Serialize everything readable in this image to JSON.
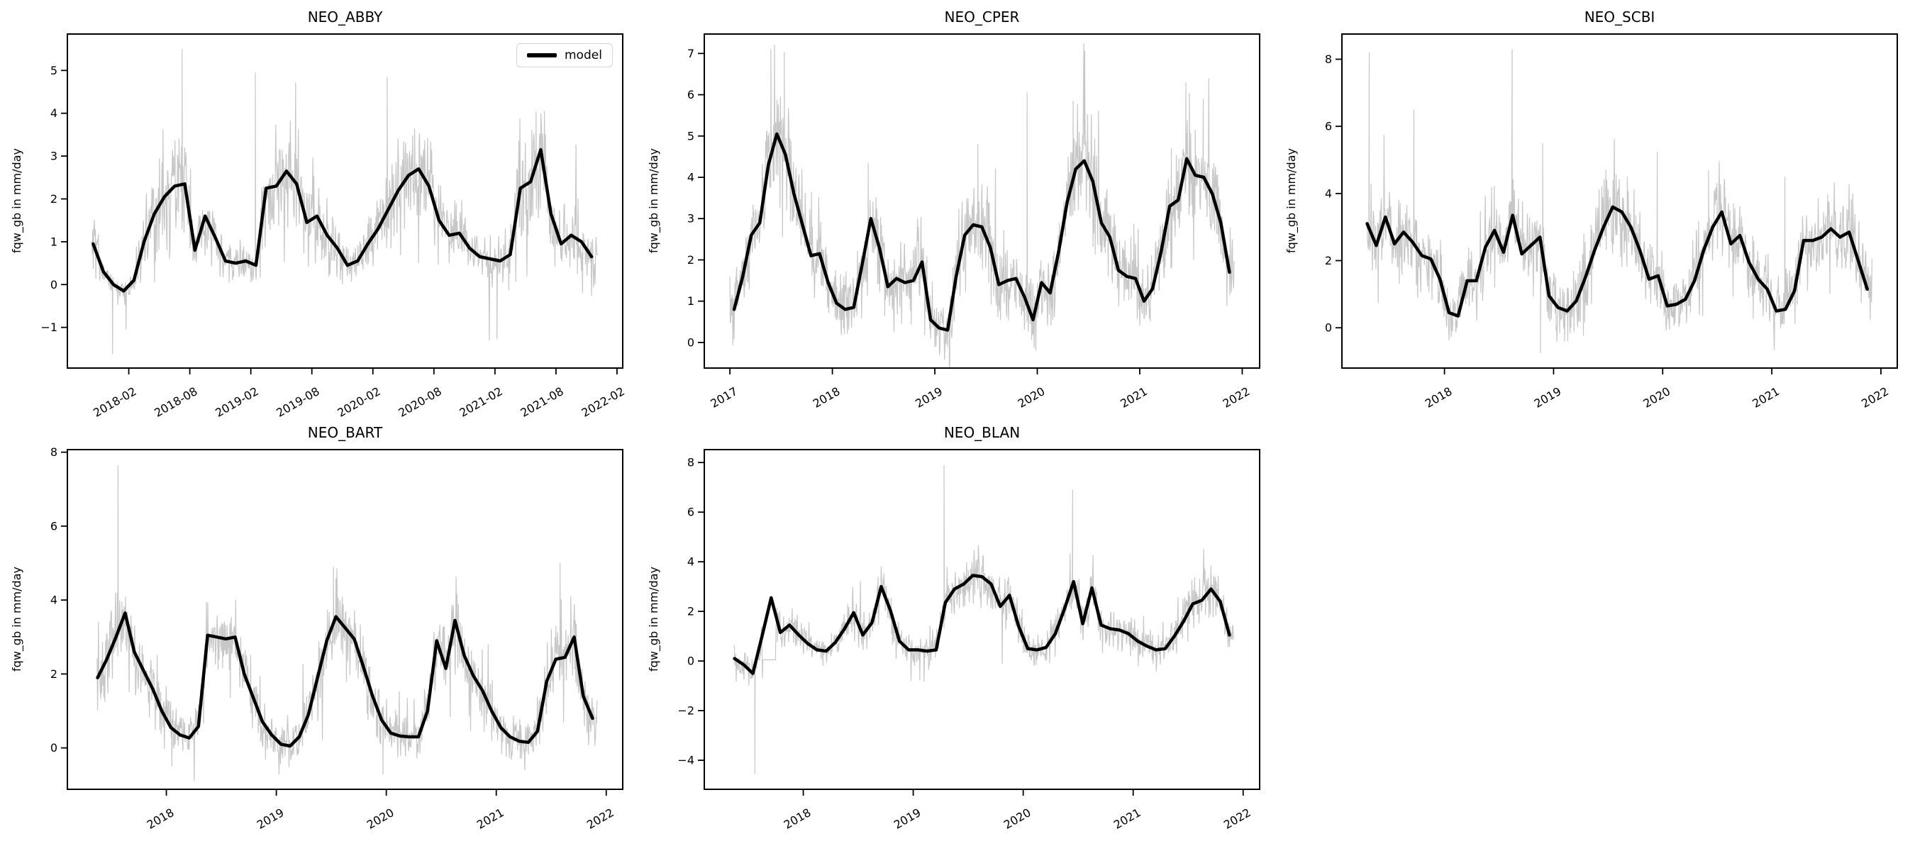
{
  "figure": {
    "background_color": "#ffffff",
    "model_color": "#000000",
    "observation_color": "#c7c7c7"
  },
  "legend": {
    "label": "model"
  },
  "chart_data": [
    {
      "id": "neo-abby",
      "type": "line",
      "title": "NEO_ABBY",
      "ylabel": "fqw_gb in mm/day",
      "xlim": [
        2017.58,
        2022.13
      ],
      "ylim": [
        -1.95,
        5.85
      ],
      "yticks": [
        -1,
        0,
        1,
        2,
        3,
        4,
        5
      ],
      "xticks": [
        {
          "v": 2018.083,
          "label": "2018-02"
        },
        {
          "v": 2018.583,
          "label": "2018-08"
        },
        {
          "v": 2019.083,
          "label": "2019-02"
        },
        {
          "v": 2019.583,
          "label": "2019-08"
        },
        {
          "v": 2020.083,
          "label": "2020-02"
        },
        {
          "v": 2020.583,
          "label": "2020-08"
        },
        {
          "v": 2021.083,
          "label": "2021-02"
        },
        {
          "v": 2021.583,
          "label": "2021-08"
        },
        {
          "v": 2022.083,
          "label": "2022-02"
        }
      ],
      "model": {
        "start_year": 2017,
        "start_month": 10,
        "monthly_values": [
          0.95,
          0.3,
          0.0,
          -0.15,
          0.1,
          1.0,
          1.65,
          2.05,
          2.3,
          2.35,
          0.8,
          1.6,
          1.1,
          0.55,
          0.5,
          0.55,
          0.45,
          2.25,
          2.3,
          2.65,
          2.35,
          1.45,
          1.6,
          1.15,
          0.85,
          0.45,
          0.55,
          0.95,
          1.3,
          1.75,
          2.2,
          2.55,
          2.7,
          2.3,
          1.5,
          1.15,
          1.2,
          0.85,
          0.65,
          0.6,
          0.55,
          0.7,
          2.25,
          2.4,
          3.15,
          1.65,
          0.95,
          1.15,
          1.0,
          0.65
        ]
      },
      "observations": {
        "start": 2017.78,
        "end": 2021.92,
        "step_days": 1.5,
        "seed": 101,
        "sd_base": 0.15,
        "sd_scale": 0.2,
        "spikes": [
          [
            2018.52,
            5.5
          ],
          [
            2019.12,
            4.95
          ],
          [
            2019.45,
            4.72
          ],
          [
            2020.2,
            4.85
          ],
          [
            2021.42,
            4.05
          ],
          [
            2017.95,
            -1.62
          ],
          [
            2018.06,
            -1.05
          ],
          [
            2021.1,
            -1.28
          ]
        ],
        "flat_segments": []
      },
      "show_legend": true
    },
    {
      "id": "neo-cper",
      "type": "line",
      "title": "NEO_CPER",
      "ylabel": "fqw_gb in mm/day",
      "xlim": [
        2016.75,
        2022.17
      ],
      "ylim": [
        -0.62,
        7.47
      ],
      "yticks": [
        0,
        1,
        2,
        3,
        4,
        5,
        6,
        7
      ],
      "xticks": [
        {
          "v": 2017,
          "label": "2017"
        },
        {
          "v": 2018,
          "label": "2018"
        },
        {
          "v": 2019,
          "label": "2019"
        },
        {
          "v": 2020,
          "label": "2020"
        },
        {
          "v": 2021,
          "label": "2021"
        },
        {
          "v": 2022,
          "label": "2022"
        }
      ],
      "model": {
        "start_year": 2017,
        "start_month": 1,
        "monthly_values": [
          0.8,
          1.6,
          2.6,
          2.9,
          4.3,
          5.05,
          4.55,
          3.6,
          2.85,
          2.1,
          2.15,
          1.45,
          0.95,
          0.8,
          0.85,
          1.9,
          3.0,
          2.3,
          1.35,
          1.55,
          1.45,
          1.5,
          1.95,
          0.55,
          0.35,
          0.3,
          1.6,
          2.6,
          2.85,
          2.8,
          2.3,
          1.4,
          1.5,
          1.55,
          1.1,
          0.55,
          1.45,
          1.2,
          2.2,
          3.4,
          4.2,
          4.4,
          3.9,
          2.9,
          2.55,
          1.75,
          1.6,
          1.55,
          1.0,
          1.3,
          2.2,
          3.3,
          3.45,
          4.45,
          4.05,
          4.0,
          3.6,
          2.9,
          1.7
        ]
      },
      "observations": {
        "start": 2017.0,
        "end": 2021.92,
        "step_days": 1.5,
        "seed": 202,
        "sd_base": 0.35,
        "sd_scale": 0.07,
        "spikes": [
          [
            2017.4,
            7.1
          ],
          [
            2017.53,
            7.03
          ],
          [
            2018.35,
            4.35
          ],
          [
            2019.42,
            4.8
          ],
          [
            2019.9,
            6.05
          ],
          [
            2020.35,
            5.85
          ],
          [
            2021.45,
            6.3
          ],
          [
            2021.62,
            5.9
          ]
        ],
        "flat_segments": []
      },
      "show_legend": false
    },
    {
      "id": "neo-scbi",
      "type": "line",
      "title": "NEO_SCBI",
      "ylabel": "fqw_gb in mm/day",
      "xlim": [
        2017.06,
        2022.15
      ],
      "ylim": [
        -1.2,
        8.75
      ],
      "yticks": [
        0,
        2,
        4,
        6,
        8
      ],
      "xticks": [
        {
          "v": 2018,
          "label": "2018"
        },
        {
          "v": 2019,
          "label": "2019"
        },
        {
          "v": 2020,
          "label": "2020"
        },
        {
          "v": 2021,
          "label": "2021"
        },
        {
          "v": 2022,
          "label": "2022"
        }
      ],
      "model": {
        "start_year": 2017,
        "start_month": 4,
        "monthly_values": [
          3.1,
          2.45,
          3.3,
          2.5,
          2.85,
          2.55,
          2.15,
          2.05,
          1.45,
          0.45,
          0.35,
          1.4,
          1.4,
          2.4,
          2.9,
          2.25,
          3.35,
          2.2,
          2.45,
          2.7,
          0.95,
          0.6,
          0.5,
          0.8,
          1.5,
          2.3,
          3.0,
          3.6,
          3.45,
          3.0,
          2.3,
          1.45,
          1.55,
          0.65,
          0.7,
          0.85,
          1.4,
          2.3,
          3.0,
          3.45,
          2.5,
          2.75,
          1.95,
          1.45,
          1.15,
          0.5,
          0.55,
          1.1,
          2.6,
          2.6,
          2.7,
          2.95,
          2.7,
          2.85,
          2.0,
          1.15
        ]
      },
      "observations": {
        "start": 2017.29,
        "end": 2021.92,
        "step_days": 1.5,
        "seed": 303,
        "sd_base": 0.42,
        "sd_scale": 0.07,
        "spikes": [
          [
            2017.31,
            8.2
          ],
          [
            2017.72,
            6.5
          ],
          [
            2018.62,
            8.3
          ],
          [
            2018.9,
            5.5
          ],
          [
            2019.95,
            5.25
          ],
          [
            2020.42,
            4.7
          ],
          [
            2021.12,
            4.5
          ],
          [
            2018.88,
            -0.75
          ]
        ],
        "flat_segments": []
      },
      "show_legend": false
    },
    {
      "id": "neo-bart",
      "type": "line",
      "title": "NEO_BART",
      "ylabel": "fqw_gb in mm/day",
      "xlim": [
        2017.1,
        2022.15
      ],
      "ylim": [
        -1.12,
        8.07
      ],
      "yticks": [
        0,
        2,
        4,
        6,
        8
      ],
      "xticks": [
        {
          "v": 2018,
          "label": "2018"
        },
        {
          "v": 2019,
          "label": "2019"
        },
        {
          "v": 2020,
          "label": "2020"
        },
        {
          "v": 2021,
          "label": "2021"
        },
        {
          "v": 2022,
          "label": "2022"
        }
      ],
      "model": {
        "start_year": 2017,
        "start_month": 5,
        "monthly_values": [
          1.9,
          2.4,
          3.0,
          3.65,
          2.6,
          2.1,
          1.6,
          1.0,
          0.55,
          0.35,
          0.27,
          0.58,
          3.05,
          3.0,
          2.95,
          3.0,
          2.0,
          1.35,
          0.7,
          0.35,
          0.1,
          0.05,
          0.3,
          0.9,
          1.9,
          2.9,
          3.55,
          3.25,
          2.95,
          2.2,
          1.4,
          0.75,
          0.4,
          0.32,
          0.3,
          0.3,
          1.0,
          2.9,
          2.15,
          3.45,
          2.5,
          1.95,
          1.55,
          1.0,
          0.55,
          0.3,
          0.18,
          0.15,
          0.45,
          1.8,
          2.4,
          2.45,
          3.0,
          1.4,
          0.8
        ]
      },
      "observations": {
        "start": 2017.37,
        "end": 2021.92,
        "step_days": 1.5,
        "seed": 404,
        "sd_base": 0.28,
        "sd_scale": 0.09,
        "spikes": [
          [
            2017.56,
            7.65
          ],
          [
            2019.52,
            4.9
          ],
          [
            2021.58,
            5.0
          ],
          [
            2019.97,
            -0.72
          ],
          [
            2018.05,
            -0.5
          ]
        ],
        "flat_segments": []
      },
      "show_legend": false
    },
    {
      "id": "neo-blan",
      "type": "line",
      "title": "NEO_BLAN",
      "ylabel": "fqw_gb in mm/day",
      "xlim": [
        2017.1,
        2022.15
      ],
      "ylim": [
        -5.17,
        8.52
      ],
      "yticks": [
        -4,
        -2,
        0,
        2,
        4,
        6,
        8
      ],
      "xticks": [
        {
          "v": 2018,
          "label": "2018"
        },
        {
          "v": 2019,
          "label": "2019"
        },
        {
          "v": 2020,
          "label": "2020"
        },
        {
          "v": 2021,
          "label": "2021"
        },
        {
          "v": 2022,
          "label": "2022"
        }
      ],
      "model": {
        "start_year": 2017,
        "start_month": 5,
        "monthly_values": [
          0.1,
          -0.15,
          -0.5,
          1.0,
          2.55,
          1.15,
          1.45,
          1.05,
          0.7,
          0.45,
          0.4,
          0.75,
          1.3,
          1.95,
          1.05,
          1.55,
          3.0,
          2.05,
          0.8,
          0.45,
          0.45,
          0.4,
          0.45,
          2.35,
          2.9,
          3.1,
          3.45,
          3.4,
          3.1,
          2.2,
          2.65,
          1.4,
          0.5,
          0.45,
          0.55,
          1.1,
          2.1,
          3.2,
          1.5,
          2.95,
          1.45,
          1.3,
          1.25,
          1.1,
          0.8,
          0.6,
          0.45,
          0.5,
          1.0,
          1.6,
          2.3,
          2.45,
          2.9,
          2.4,
          1.05
        ]
      },
      "observations": {
        "start": 2017.37,
        "end": 2021.92,
        "step_days": 1.5,
        "seed": 505,
        "sd_base": 0.3,
        "sd_scale": 0.08,
        "spikes": [
          [
            2019.28,
            7.9
          ],
          [
            2020.45,
            6.9
          ],
          [
            2017.56,
            -4.55
          ],
          [
            2019.06,
            -0.78
          ]
        ],
        "flat_segments": [
          [
            2017.63,
            2017.75,
            0.05
          ]
        ]
      },
      "show_legend": false
    }
  ]
}
